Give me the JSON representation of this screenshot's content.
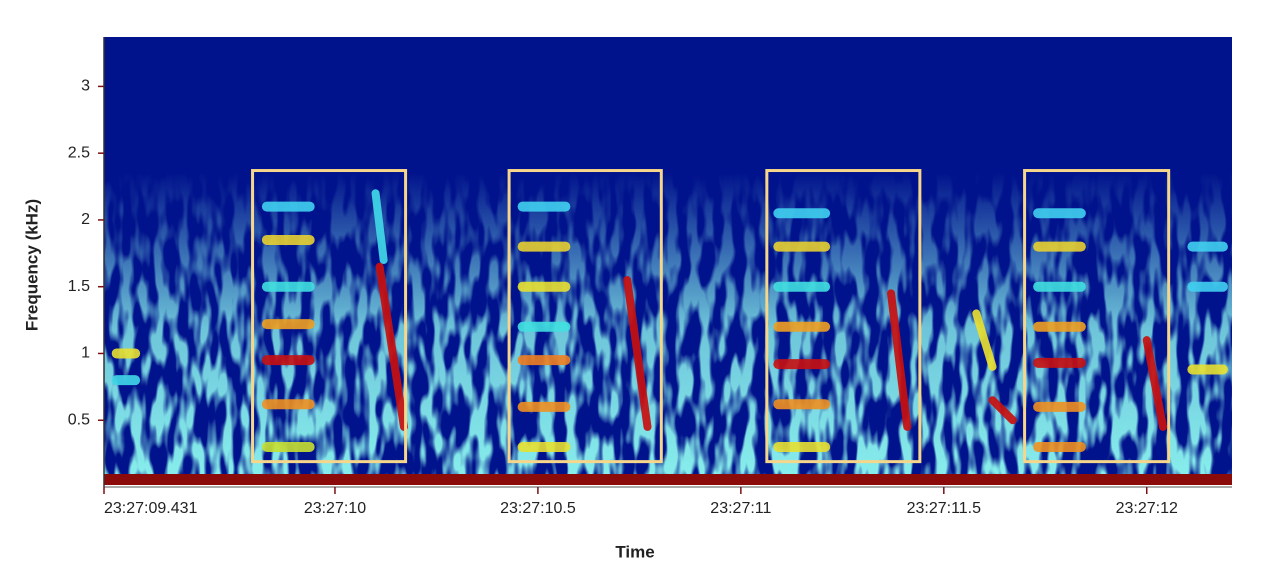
{
  "chart_data": {
    "type": "spectrogram",
    "x_label": "Time",
    "y_label": "Frequency (kHz)",
    "xlim": [
      9.431,
      12.21
    ],
    "ylim": [
      0,
      3.37
    ],
    "xticks": [
      {
        "value": 9.431,
        "label": "23:27:09.431"
      },
      {
        "value": 10,
        "label": "23:27:10"
      },
      {
        "value": 10.5,
        "label": "23:27:10.5"
      },
      {
        "value": 11,
        "label": "23:27:11"
      },
      {
        "value": 11.5,
        "label": "23:27:11.5"
      },
      {
        "value": 12,
        "label": "23:27:12"
      }
    ],
    "yticks": [
      0.5,
      1,
      1.5,
      2,
      2.5,
      3
    ],
    "background_color": "#00128c",
    "bands": [
      {
        "x": [
          9.45,
          9.52
        ],
        "y": 1.0,
        "color": "#e8e030"
      },
      {
        "x": [
          9.45,
          9.52
        ],
        "y": 0.8,
        "color": "#40d8e8"
      },
      {
        "x": [
          9.82,
          9.95
        ],
        "y": 0.3,
        "color": "#c8e030"
      },
      {
        "x": [
          9.82,
          9.95
        ],
        "y": 0.62,
        "color": "#f09020"
      },
      {
        "x": [
          9.82,
          9.95
        ],
        "y": 0.95,
        "color": "#c81010"
      },
      {
        "x": [
          9.82,
          9.95
        ],
        "y": 1.22,
        "color": "#f0a020"
      },
      {
        "x": [
          9.82,
          9.95
        ],
        "y": 1.5,
        "color": "#40e0e0"
      },
      {
        "x": [
          9.82,
          9.95
        ],
        "y": 1.85,
        "color": "#e8d030"
      },
      {
        "x": [
          9.82,
          9.95
        ],
        "y": 2.1,
        "color": "#40d0f0"
      },
      {
        "x": [
          10.45,
          10.58
        ],
        "y": 0.3,
        "color": "#e8e030"
      },
      {
        "x": [
          10.45,
          10.58
        ],
        "y": 0.6,
        "color": "#f09020"
      },
      {
        "x": [
          10.45,
          10.58
        ],
        "y": 0.95,
        "color": "#f08020"
      },
      {
        "x": [
          10.45,
          10.58
        ],
        "y": 1.2,
        "color": "#40e0e0"
      },
      {
        "x": [
          10.45,
          10.58
        ],
        "y": 1.5,
        "color": "#e8e030"
      },
      {
        "x": [
          10.45,
          10.58
        ],
        "y": 1.8,
        "color": "#e8d030"
      },
      {
        "x": [
          10.45,
          10.58
        ],
        "y": 2.1,
        "color": "#40d0f0"
      },
      {
        "x": [
          11.08,
          11.22
        ],
        "y": 0.3,
        "color": "#e8e030"
      },
      {
        "x": [
          11.08,
          11.22
        ],
        "y": 0.62,
        "color": "#f09020"
      },
      {
        "x": [
          11.08,
          11.22
        ],
        "y": 0.92,
        "color": "#c81010"
      },
      {
        "x": [
          11.08,
          11.22
        ],
        "y": 1.2,
        "color": "#f0a020"
      },
      {
        "x": [
          11.08,
          11.22
        ],
        "y": 1.5,
        "color": "#40e0e0"
      },
      {
        "x": [
          11.08,
          11.22
        ],
        "y": 1.8,
        "color": "#e8d030"
      },
      {
        "x": [
          11.08,
          11.22
        ],
        "y": 2.05,
        "color": "#40d0f0"
      },
      {
        "x": [
          11.72,
          11.85
        ],
        "y": 0.3,
        "color": "#f09020"
      },
      {
        "x": [
          11.72,
          11.85
        ],
        "y": 0.6,
        "color": "#f09020"
      },
      {
        "x": [
          11.72,
          11.85
        ],
        "y": 0.93,
        "color": "#c81010"
      },
      {
        "x": [
          11.72,
          11.85
        ],
        "y": 1.2,
        "color": "#f0a020"
      },
      {
        "x": [
          11.72,
          11.85
        ],
        "y": 1.5,
        "color": "#40e0e0"
      },
      {
        "x": [
          11.72,
          11.85
        ],
        "y": 1.8,
        "color": "#e8d030"
      },
      {
        "x": [
          11.72,
          11.85
        ],
        "y": 2.05,
        "color": "#40d0f0"
      },
      {
        "x": [
          12.1,
          12.2
        ],
        "y": 0.88,
        "color": "#e8e030"
      },
      {
        "x": [
          12.1,
          12.2
        ],
        "y": 1.5,
        "color": "#40d0f0"
      },
      {
        "x": [
          12.1,
          12.2
        ],
        "y": 1.8,
        "color": "#40d0f0"
      }
    ],
    "sweeps": [
      {
        "x": [
          10.11,
          10.17
        ],
        "y": [
          1.65,
          0.45
        ],
        "color": "#c81010"
      },
      {
        "x": [
          10.1,
          10.12
        ],
        "y": [
          2.2,
          1.7
        ],
        "color": "#40d8e8"
      },
      {
        "x": [
          10.72,
          10.77
        ],
        "y": [
          1.55,
          0.45
        ],
        "color": "#c81010"
      },
      {
        "x": [
          11.37,
          11.41
        ],
        "y": [
          1.45,
          0.45
        ],
        "color": "#c81010"
      },
      {
        "x": [
          11.58,
          11.62
        ],
        "y": [
          1.3,
          0.9
        ],
        "color": "#e8e030"
      },
      {
        "x": [
          11.62,
          11.67
        ],
        "y": [
          0.65,
          0.5
        ],
        "color": "#c81010"
      },
      {
        "x": [
          12.0,
          12.04
        ],
        "y": [
          1.1,
          0.45
        ],
        "color": "#c81010"
      }
    ],
    "selection_color": "#f5d68a",
    "selections": [
      {
        "x": [
          9.797,
          10.174
        ],
        "y": [
          0.19,
          2.37
        ]
      },
      {
        "x": [
          10.429,
          10.804
        ],
        "y": [
          0.19,
          2.37
        ]
      },
      {
        "x": [
          11.064,
          11.441
        ],
        "y": [
          0.19,
          2.37
        ]
      },
      {
        "x": [
          11.699,
          12.054
        ],
        "y": [
          0.19,
          2.37
        ]
      }
    ]
  }
}
